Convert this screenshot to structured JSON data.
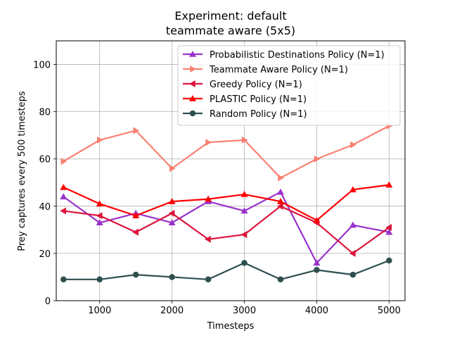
{
  "chart_data": {
    "type": "line",
    "title": "Experiment: default",
    "subtitle": "teammate aware (5x5)",
    "xlabel": "Timesteps",
    "ylabel": "Prey captures every 500 timesteps",
    "xlim": [
      400,
      5220
    ],
    "ylim": [
      0,
      110
    ],
    "xticks": [
      1000,
      2000,
      3000,
      4000,
      5000
    ],
    "yticks": [
      0,
      20,
      40,
      60,
      80,
      100
    ],
    "grid": true,
    "legend_position": "top-right",
    "x": [
      500,
      1000,
      1500,
      2000,
      2500,
      3000,
      3500,
      4000,
      4500,
      5000
    ],
    "series": [
      {
        "name": "Probabilistic Destinations Policy (N=1)",
        "color": "#9932cc",
        "marker": "triangle-up",
        "values": [
          44,
          33,
          37,
          33,
          42,
          38,
          46,
          16,
          32,
          29
        ]
      },
      {
        "name": "Teammate Aware Policy (N=1)",
        "color": "#fa8072",
        "marker": "triangle-right",
        "values": [
          59,
          68,
          72,
          56,
          67,
          68,
          52,
          60,
          66,
          74
        ]
      },
      {
        "name": "Greedy Policy (N=1)",
        "color": "#dc143c",
        "marker": "triangle-left",
        "values": [
          38,
          36,
          29,
          37,
          26,
          28,
          40,
          33,
          20,
          31
        ]
      },
      {
        "name": "PLASTIC Policy (N=1)",
        "color": "#ff0000",
        "marker": "triangle-up",
        "values": [
          48,
          41,
          36,
          42,
          43,
          45,
          42,
          34,
          47,
          49
        ]
      },
      {
        "name": "Random Policy (N=1)",
        "color": "#2f4f4f",
        "marker": "circle",
        "values": [
          9,
          9,
          11,
          10,
          9,
          16,
          9,
          13,
          11,
          17
        ]
      }
    ]
  }
}
